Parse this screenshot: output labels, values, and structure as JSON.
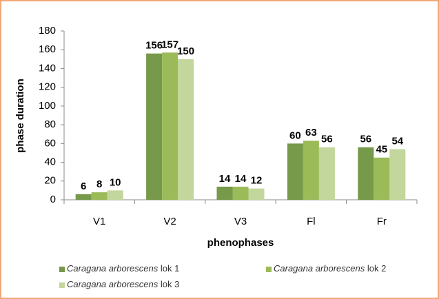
{
  "chart_data": {
    "type": "bar",
    "categories": [
      "V1",
      "V2",
      "V3",
      "Fl",
      "Fr"
    ],
    "series": [
      {
        "name": "Caragana arborescens lok 1",
        "color": "#77994a",
        "values": [
          6,
          156,
          14,
          60,
          56
        ]
      },
      {
        "name": "Caragana arborescens lok 2",
        "color": "#9bbb59",
        "values": [
          8,
          157,
          14,
          63,
          45
        ]
      },
      {
        "name": "Caragana arborescens lok 3",
        "color": "#c3d69b",
        "values": [
          10,
          150,
          12,
          56,
          54
        ]
      }
    ],
    "x_label": "phenophases",
    "y_label": "phase duration",
    "ylim": [
      0,
      180
    ],
    "yticks": [
      0,
      20,
      40,
      60,
      80,
      100,
      120,
      140,
      160,
      180
    ],
    "grid": false,
    "legend": "bottom"
  }
}
